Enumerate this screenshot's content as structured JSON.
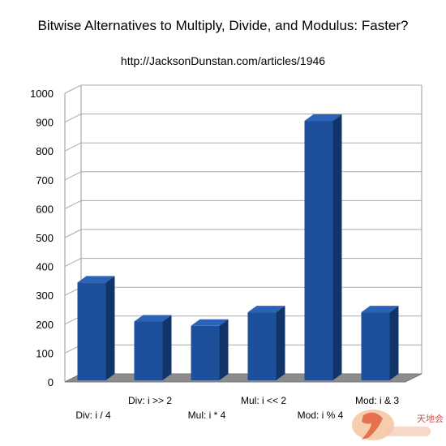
{
  "title": "Bitwise Alternatives to Multiply, Divide, and Modulus: Faster?",
  "subtitle": "http://JacksonDunstan.com/articles/1946",
  "chart_data": {
    "type": "bar",
    "categories": [
      "Div: i / 4",
      "Div: i >> 2",
      "Mul: i * 4",
      "Mul: i << 2",
      "Mod: i % 4",
      "Mod: i & 3"
    ],
    "values": [
      350,
      215,
      200,
      247,
      910,
      247
    ],
    "ylim": [
      0,
      1000
    ],
    "yticks": [
      0,
      100,
      200,
      300,
      400,
      500,
      600,
      700,
      800,
      900,
      1000
    ],
    "grid": true,
    "legend": "none",
    "bar_color": "#1d4f9a",
    "bar_side_color": "#123569",
    "bar_top_color": "#2a63b8"
  },
  "watermark": {
    "name": "site-logo-watermark",
    "text": "天地会"
  }
}
